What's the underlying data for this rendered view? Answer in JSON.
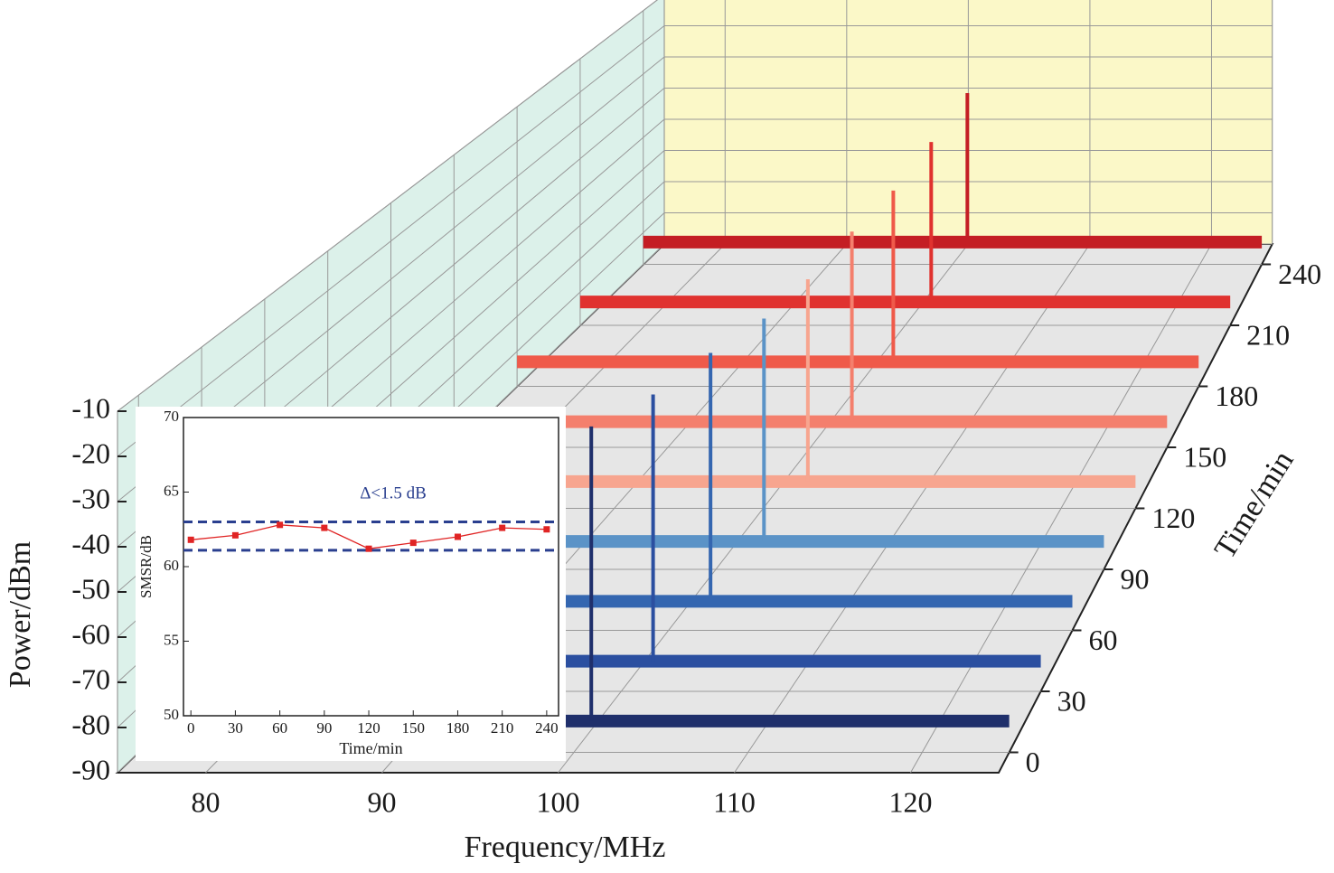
{
  "chart_data": [
    {
      "type": "waterfall",
      "xlabel": "Frequency/MHz",
      "ylabel": "Power/dBm",
      "zlabel": "Time/min",
      "xlim": [
        75,
        125
      ],
      "xticks": [
        80,
        90,
        100,
        110,
        120
      ],
      "ylim": [
        -90,
        -10
      ],
      "yticks": [
        -10,
        -20,
        -30,
        -40,
        -50,
        -60,
        -70,
        -80,
        -90
      ],
      "zlim": [
        -10,
        250
      ],
      "zticks": [
        0,
        30,
        60,
        90,
        120,
        150,
        180,
        210,
        240
      ],
      "series": [
        {
          "time": 0,
          "color": "#1f2f6b",
          "noise_floor": -83,
          "peak_frequency": 101.0,
          "peak_power": -17
        },
        {
          "time": 30,
          "color": "#2b4fa0",
          "noise_floor": -83,
          "peak_frequency": 101.9,
          "peak_power": -21
        },
        {
          "time": 60,
          "color": "#3466b0",
          "noise_floor": -83,
          "peak_frequency": 102.6,
          "peak_power": -23
        },
        {
          "time": 90,
          "color": "#5b93c7",
          "noise_floor": -83,
          "peak_frequency": 103.1,
          "peak_power": -27
        },
        {
          "time": 120,
          "color": "#f7a58f",
          "noise_floor": -83,
          "peak_frequency": 103.0,
          "peak_power": -30
        },
        {
          "time": 150,
          "color": "#f47f6d",
          "noise_floor": -83,
          "peak_frequency": 102.9,
          "peak_power": -31
        },
        {
          "time": 180,
          "color": "#ef5a4a",
          "noise_floor": -83,
          "peak_frequency": 102.6,
          "peak_power": -34
        },
        {
          "time": 210,
          "color": "#e0322f",
          "noise_floor": -83,
          "peak_frequency": 102.0,
          "peak_power": -35
        },
        {
          "time": 240,
          "color": "#c41e24",
          "noise_floor": -83,
          "peak_frequency": 101.2,
          "peak_power": -36
        }
      ]
    },
    {
      "type": "line",
      "xlabel": "Time/min",
      "ylabel": "SMSR/dB",
      "annotation": "Δ<1.5 dB",
      "x": [
        0,
        30,
        60,
        90,
        120,
        150,
        180,
        210,
        240
      ],
      "series": [
        {
          "color": "#e02424",
          "values": [
            61.8,
            62.1,
            62.8,
            62.6,
            61.2,
            61.6,
            62.0,
            62.6,
            62.5
          ]
        }
      ],
      "reference_lines": [
        63.0,
        61.1
      ],
      "reference_color": "#2a3f8f",
      "xlim": [
        -5,
        248
      ],
      "xticks": [
        0,
        30,
        60,
        90,
        120,
        150,
        180,
        210,
        240
      ],
      "ylim": [
        50,
        70
      ],
      "yticks": [
        50,
        55,
        60,
        65,
        70
      ]
    }
  ]
}
